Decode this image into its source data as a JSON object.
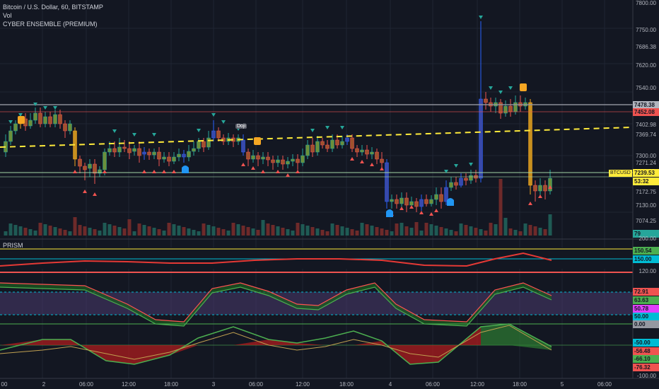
{
  "header": {
    "title": "Bitcoin / U.S. Dollar, 60, BITSTAMP",
    "vol": "Vol",
    "indicator": "CYBER ENSEMBLE (PREMIUM)",
    "panel2": "PRISM"
  },
  "main_axis": [
    "7800.00",
    "7750.00",
    "7686.38",
    "7620.00",
    "7540.00",
    "7478.38",
    "7452.08",
    "7402.98",
    "7369.74",
    "7300.00",
    "7271.24",
    "7239.53",
    "53:32",
    "7172.75",
    "7130.00",
    "7074.25",
    "79",
    "200.00"
  ],
  "symbol_tag": "BTCUSD",
  "prism_axis": [
    "150.54",
    "150.00",
    "120.00",
    "72.91",
    "63.63",
    "50.78",
    "50.00",
    "0.00",
    "-50.00",
    "-56.48",
    "-66.10",
    "-76.32",
    "-100.00"
  ],
  "time_axis": [
    "00",
    "2",
    "06:00",
    "12:00",
    "18:00",
    "3",
    "06:00",
    "12:00",
    "18:00",
    "4",
    "06:00",
    "12:00",
    "18:00",
    "5",
    "06:00"
  ],
  "doji_label": "Doji",
  "signal_letters": [
    "B",
    "B",
    "B"
  ],
  "colors": {
    "up": "#26a69a",
    "down": "#ef5350",
    "blue": "#2962ff",
    "yellow": "#ffeb3b",
    "orange": "#f5a623"
  }
}
